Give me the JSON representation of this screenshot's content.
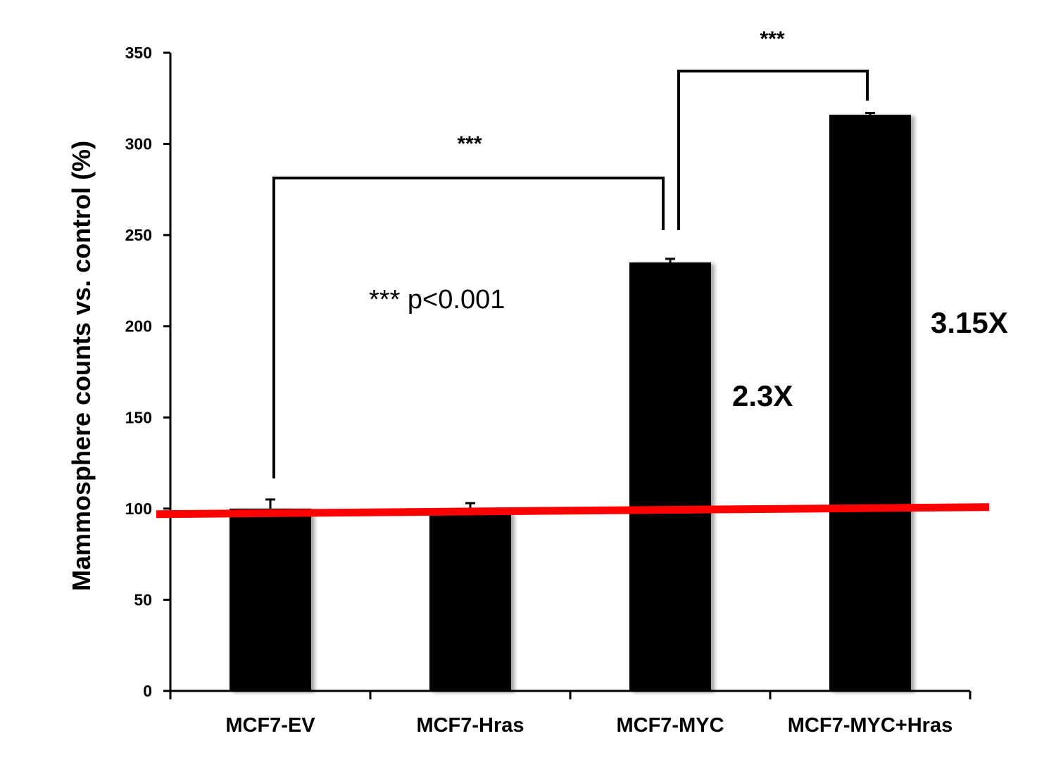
{
  "chart_data": {
    "type": "bar",
    "title": "",
    "xlabel": "",
    "ylabel": "Mammosphere counts vs. control (%)",
    "ylim": [
      0,
      350
    ],
    "yticks": [
      0,
      50,
      100,
      150,
      200,
      250,
      300,
      350
    ],
    "grid": false,
    "legend": "none",
    "categories": [
      "MCF7-EV",
      "MCF7-Hras",
      "MCF7-MYC",
      "MCF7-MYC+Hras"
    ],
    "values": [
      100,
      98,
      235,
      316
    ],
    "errors": [
      5,
      5,
      2,
      1
    ],
    "bar_color": "#000000",
    "reference_line": {
      "value": 98.5,
      "color": "#ff0000"
    },
    "significance": [
      {
        "from": "MCF7-EV",
        "to": "MCF7-MYC",
        "label": "***"
      },
      {
        "from": "MCF7-MYC",
        "to": "MCF7-MYC+Hras",
        "label": "***"
      }
    ],
    "annotations": {
      "pvalue": "*** p<0.001",
      "fold_myc": "2.3X",
      "fold_myc_hras": "3.15X"
    }
  }
}
